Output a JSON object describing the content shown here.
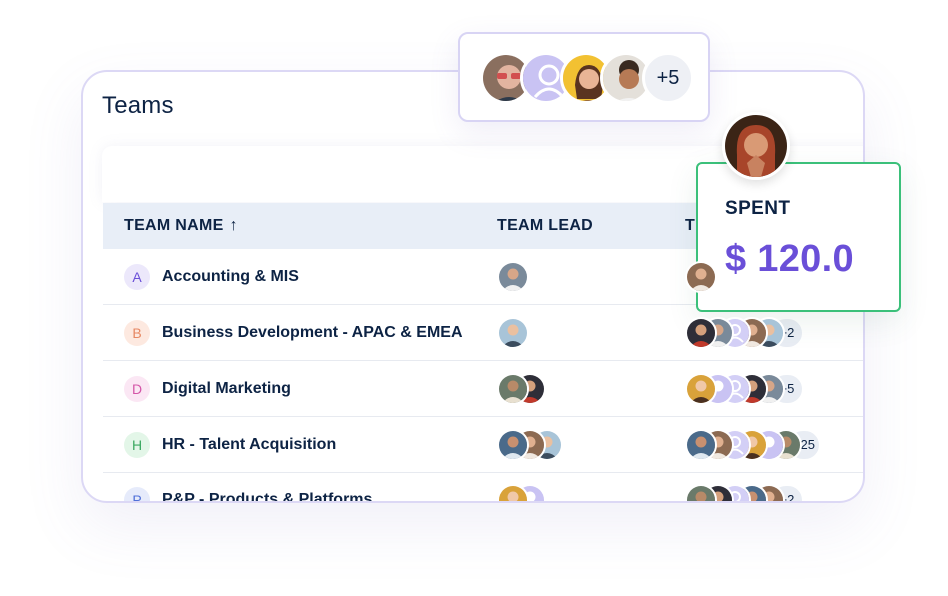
{
  "teams_panel": {
    "title": "Teams",
    "columns": {
      "team_name": "TEAM NAME",
      "team_lead": "TEAM LEAD",
      "team_members_partial": "T"
    },
    "rows": [
      {
        "initial": "A",
        "name": "Accounting & MIS",
        "badge_bg": "#ece8fb",
        "badge_fg": "#6a4fd8",
        "lead_count": 1,
        "member_count": 1,
        "more": ""
      },
      {
        "initial": "B",
        "name": "Business Development - APAC & EMEA",
        "badge_bg": "#fde9e0",
        "badge_fg": "#e68863",
        "lead_count": 1,
        "member_count": 5,
        "more": "+2"
      },
      {
        "initial": "D",
        "name": "Digital Marketing",
        "badge_bg": "#fbe7f4",
        "badge_fg": "#d456a8",
        "lead_count": 2,
        "member_count": 5,
        "more": "+5"
      },
      {
        "initial": "H",
        "name": "HR - Talent Acquisition",
        "badge_bg": "#e3f6e8",
        "badge_fg": "#3aa860",
        "lead_count": 3,
        "member_count": 6,
        "more": "+25"
      },
      {
        "initial": "P",
        "name": "P&P - Products & Platforms",
        "badge_bg": "#e6ebfb",
        "badge_fg": "#4f6fd8",
        "lead_count": 2,
        "member_count": 5,
        "more": "+2"
      }
    ]
  },
  "avatar_popup": {
    "more": "+5"
  },
  "spent_card": {
    "label": "SPENT",
    "value": "$ 120.0"
  },
  "colors": {
    "accent_purple": "#6a4fd8",
    "success_green": "#3bc07a",
    "header_bg": "#e8eef7",
    "text_dark": "#0d2344"
  }
}
